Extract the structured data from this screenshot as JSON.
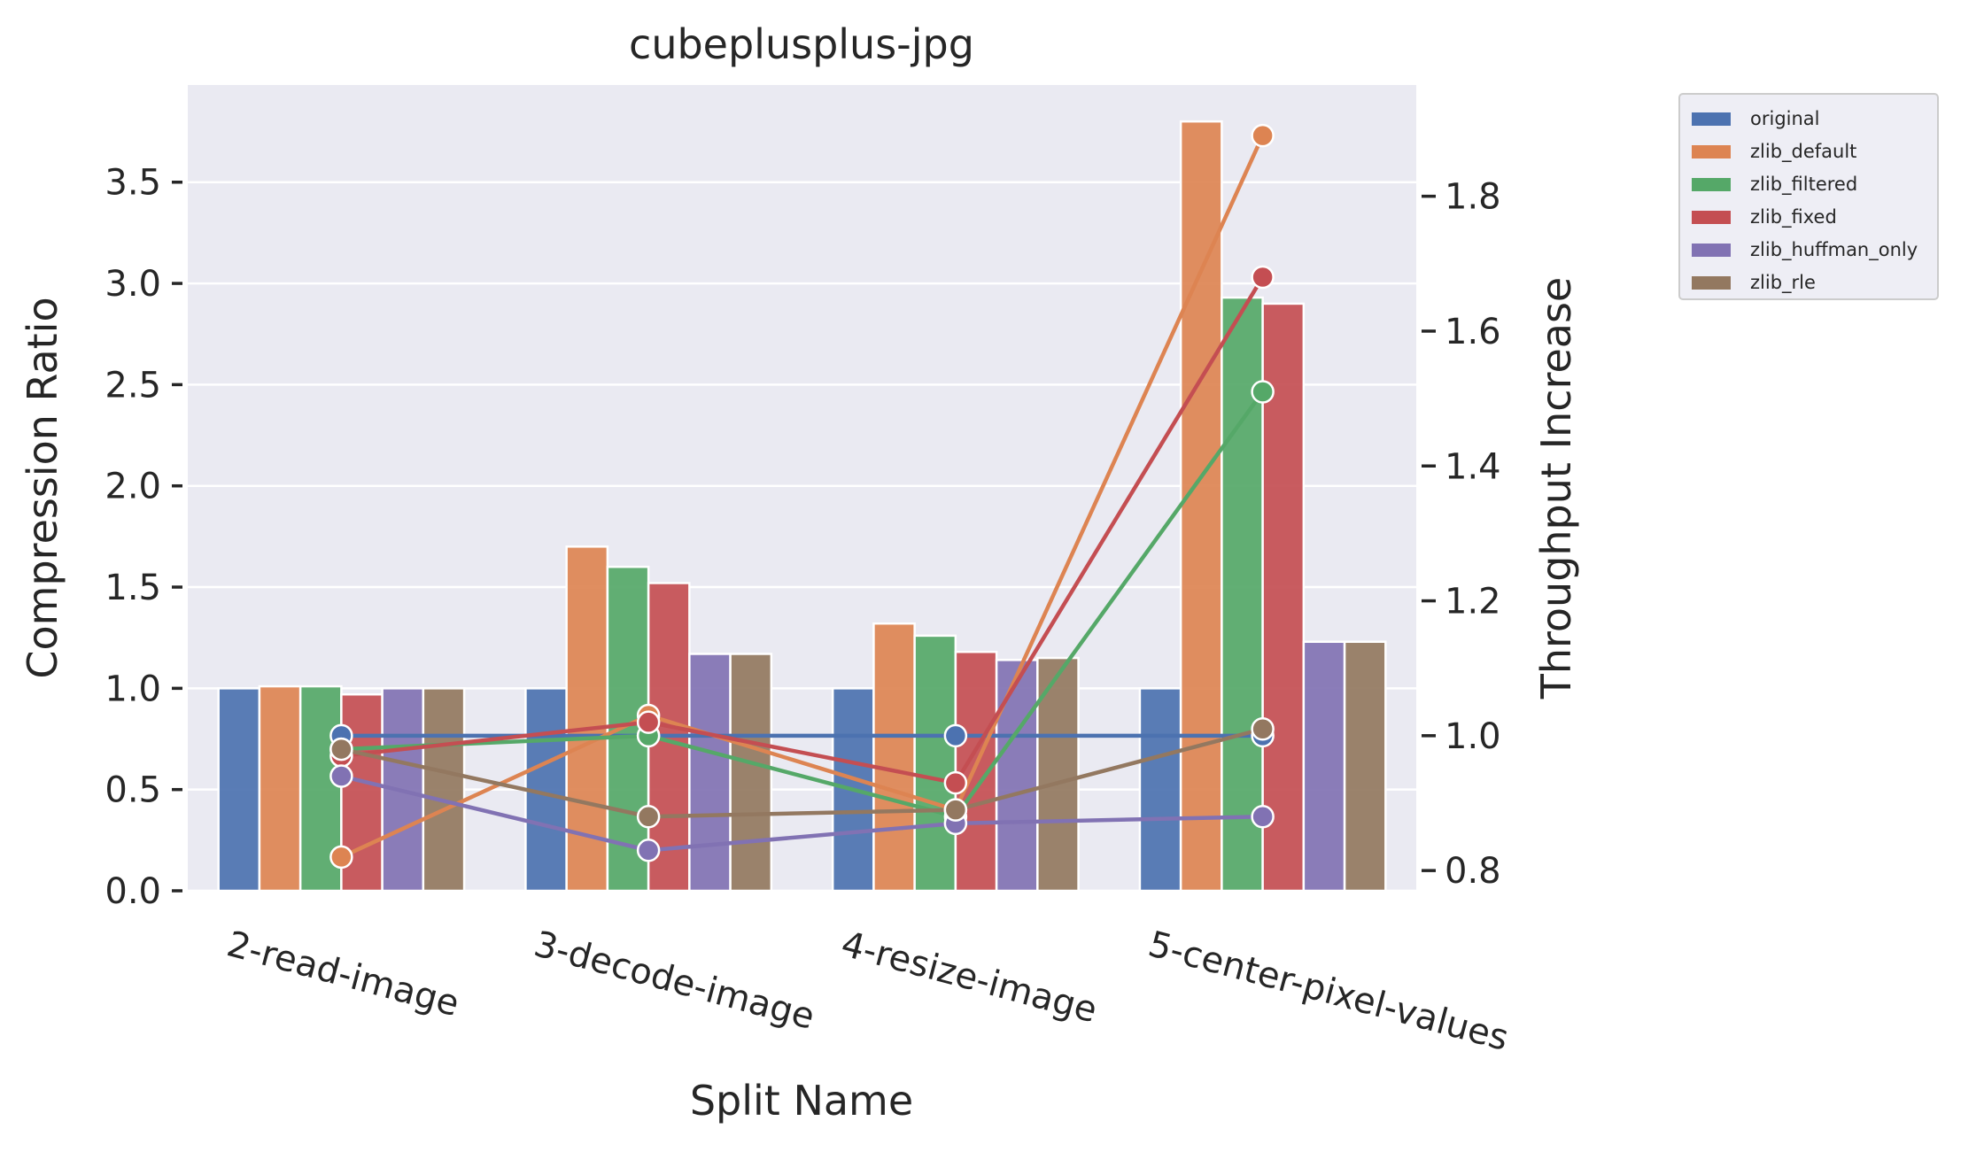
{
  "chart_data": {
    "type": "bar",
    "title": "cubeplusplus-jpg",
    "xlabel": "Split Name",
    "ylabel": "Compression Ratio",
    "y2label": "Throughput Increase",
    "categories": [
      "2-read-image",
      "3-decode-image",
      "4-resize-image",
      "5-center-pixel-values"
    ],
    "ylim": [
      0,
      3.98
    ],
    "y2lim": [
      0.77,
      1.965
    ],
    "yticks": [
      "0.0",
      "0.5",
      "1.0",
      "1.5",
      "2.0",
      "2.5",
      "3.0",
      "3.5"
    ],
    "y2ticks": [
      "0.8",
      "1.0",
      "1.2",
      "1.4",
      "1.6",
      "1.8"
    ],
    "legend_position": "outside-right",
    "grid": true,
    "series": [
      {
        "name": "original",
        "color": "#4c72b0",
        "bar_values": [
          1.0,
          1.0,
          1.0,
          1.0
        ],
        "line_values": [
          1.0,
          1.0,
          1.0,
          1.0
        ]
      },
      {
        "name": "zlib_default",
        "color": "#dd8452",
        "bar_values": [
          1.01,
          1.7,
          1.32,
          3.8
        ],
        "line_values": [
          0.82,
          1.03,
          0.89,
          1.89
        ]
      },
      {
        "name": "zlib_filtered",
        "color": "#55a868",
        "bar_values": [
          1.01,
          1.6,
          1.26,
          2.93
        ],
        "line_values": [
          0.98,
          1.0,
          0.88,
          1.51
        ]
      },
      {
        "name": "zlib_fixed",
        "color": "#c44e52",
        "bar_values": [
          0.97,
          1.52,
          1.18,
          2.9
        ],
        "line_values": [
          0.97,
          1.02,
          0.93,
          1.68
        ]
      },
      {
        "name": "zlib_huffman_only",
        "color": "#8172b3",
        "bar_values": [
          1.0,
          1.17,
          1.14,
          1.23
        ],
        "line_values": [
          0.94,
          0.83,
          0.87,
          0.88
        ]
      },
      {
        "name": "zlib_rle",
        "color": "#937860",
        "bar_values": [
          1.0,
          1.17,
          1.15,
          1.23
        ],
        "line_values": [
          0.98,
          0.88,
          0.89,
          1.01
        ]
      }
    ]
  }
}
